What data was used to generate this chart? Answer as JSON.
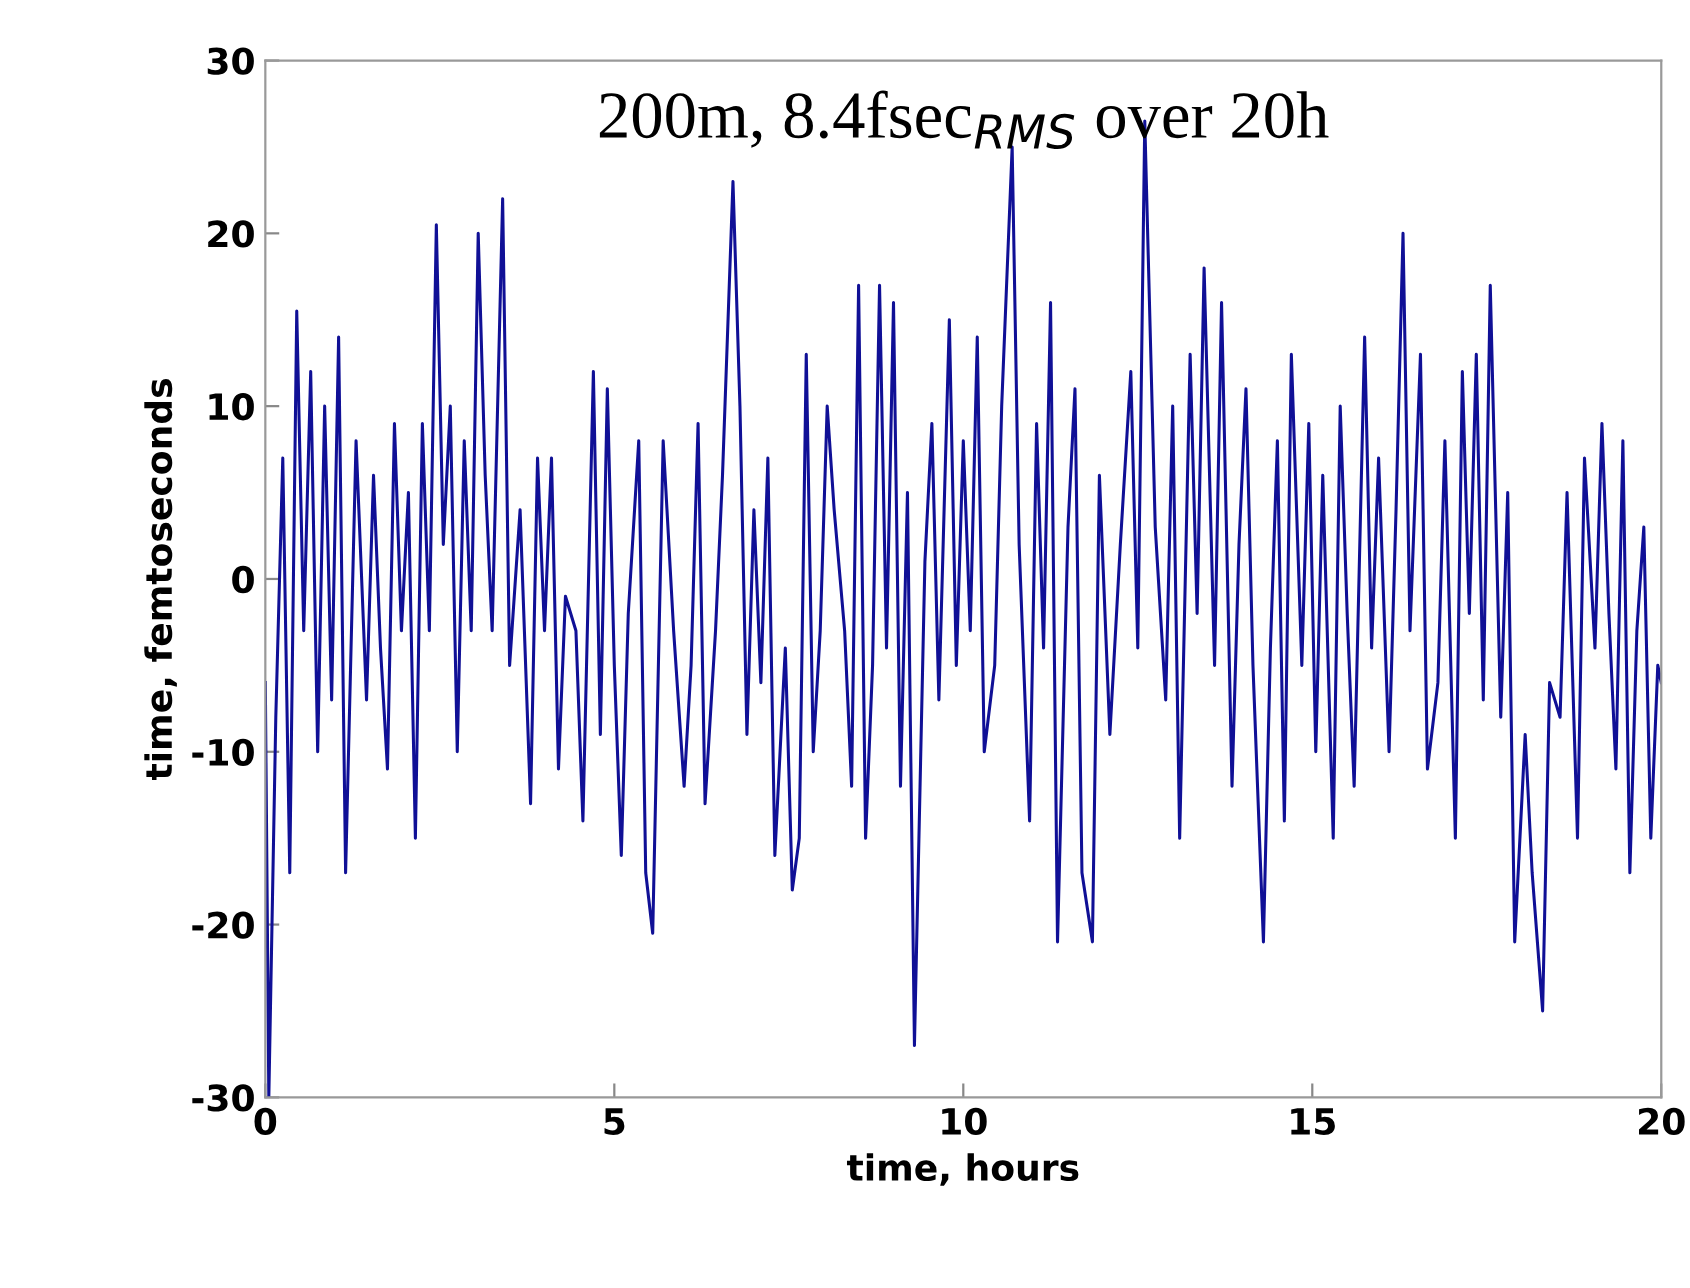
{
  "chart_data": {
    "type": "line",
    "xlabel": "time, hours",
    "ylabel": "time, femtoseconds",
    "annotations": [
      "200m, 8.4fsec$_{RMS}$ over 20h"
    ],
    "xlim": [
      0,
      20
    ],
    "xticks": [
      0,
      5,
      10,
      15,
      20
    ],
    "ylim": [
      -30,
      30
    ],
    "yticks": [
      -30,
      -20,
      -10,
      0,
      10,
      20,
      30
    ],
    "grid": false,
    "legend": false,
    "marker": "none",
    "line_style": "solid",
    "series": [
      {
        "color": "#101096",
        "x": [
          0,
          0.05,
          0.15,
          0.25,
          0.35,
          0.45,
          0.55,
          0.65,
          0.75,
          0.85,
          0.95,
          1.05,
          1.15,
          1.3,
          1.45,
          1.55,
          1.65,
          1.75,
          1.85,
          1.95,
          2.05,
          2.15,
          2.25,
          2.35,
          2.45,
          2.55,
          2.65,
          2.75,
          2.85,
          2.95,
          3.05,
          3.15,
          3.25,
          3.4,
          3.5,
          3.65,
          3.8,
          3.9,
          4.0,
          4.1,
          4.2,
          4.3,
          4.45,
          4.55,
          4.7,
          4.8,
          4.9,
          5.0,
          5.1,
          5.2,
          5.35,
          5.45,
          5.55,
          5.7,
          5.85,
          6.0,
          6.1,
          6.2,
          6.3,
          6.45,
          6.55,
          6.7,
          6.8,
          6.9,
          7.0,
          7.1,
          7.2,
          7.3,
          7.45,
          7.55,
          7.65,
          7.75,
          7.85,
          7.95,
          8.05,
          8.15,
          8.3,
          8.4,
          8.5,
          8.6,
          8.7,
          8.8,
          8.9,
          9.0,
          9.1,
          9.2,
          9.3,
          9.45,
          9.55,
          9.65,
          9.8,
          9.9,
          10.0,
          10.1,
          10.2,
          10.3,
          10.45,
          10.55,
          10.7,
          10.8,
          10.95,
          11.05,
          11.15,
          11.25,
          11.35,
          11.5,
          11.6,
          11.7,
          11.85,
          11.95,
          12.1,
          12.25,
          12.4,
          12.5,
          12.6,
          12.75,
          12.9,
          13.0,
          13.1,
          13.25,
          13.35,
          13.45,
          13.6,
          13.7,
          13.85,
          13.95,
          14.05,
          14.15,
          14.3,
          14.4,
          14.5,
          14.6,
          14.7,
          14.85,
          14.95,
          15.05,
          15.15,
          15.3,
          15.4,
          15.5,
          15.6,
          15.75,
          15.85,
          15.95,
          16.1,
          16.2,
          16.3,
          16.4,
          16.55,
          16.65,
          16.8,
          16.9,
          17.05,
          17.15,
          17.25,
          17.35,
          17.45,
          17.55,
          17.7,
          17.8,
          17.9,
          18.05,
          18.15,
          18.3,
          18.4,
          18.55,
          18.65,
          18.8,
          18.9,
          19.05,
          19.15,
          19.25,
          19.35,
          19.45,
          19.55,
          19.65,
          19.75,
          19.85,
          19.95,
          20
        ],
        "values": [
          -6,
          -30,
          -8,
          7,
          -17,
          15.5,
          -3,
          12,
          -10,
          10,
          -7,
          14,
          -17,
          8,
          -7,
          6,
          -4,
          -11,
          9,
          -3,
          5,
          -15,
          9,
          -3,
          20.5,
          2,
          10,
          -10,
          8,
          -3,
          20,
          6,
          -3,
          22,
          -5,
          4,
          -13,
          7,
          -3,
          7,
          -11,
          -1,
          -3,
          -14,
          12,
          -9,
          11,
          -5,
          -16,
          -2,
          8,
          -17,
          -20.5,
          8,
          -3,
          -12,
          -5,
          9,
          -13,
          -3,
          6,
          23,
          10,
          -9,
          4,
          -6,
          7,
          -16,
          -4,
          -18,
          -15,
          13,
          -10,
          -3,
          10,
          4,
          -3,
          -12,
          17,
          -15,
          -5,
          17,
          -4,
          16,
          -12,
          5,
          -27,
          1,
          9,
          -7,
          15,
          -5,
          8,
          -3,
          14,
          -10,
          -5,
          10,
          25,
          2,
          -14,
          9,
          -4,
          16,
          -21,
          3,
          11,
          -17,
          -21,
          6,
          -9,
          2,
          12,
          -4,
          26.5,
          3,
          -7,
          10,
          -15,
          13,
          -2,
          18,
          -5,
          16,
          -12,
          2,
          11,
          -5,
          -21,
          -4,
          8,
          -14,
          13,
          -5,
          9,
          -10,
          6,
          -15,
          10,
          -2,
          -12,
          14,
          -4,
          7,
          -10,
          4,
          20,
          -3,
          13,
          -11,
          -6,
          8,
          -15,
          12,
          -2,
          13,
          -7,
          17,
          -8,
          5,
          -21,
          -9,
          -17,
          -25,
          -6,
          -8,
          5,
          -15,
          7,
          -4,
          9,
          -2,
          -11,
          8,
          -17,
          -3,
          3,
          -15,
          -5,
          -6
        ]
      }
    ]
  }
}
